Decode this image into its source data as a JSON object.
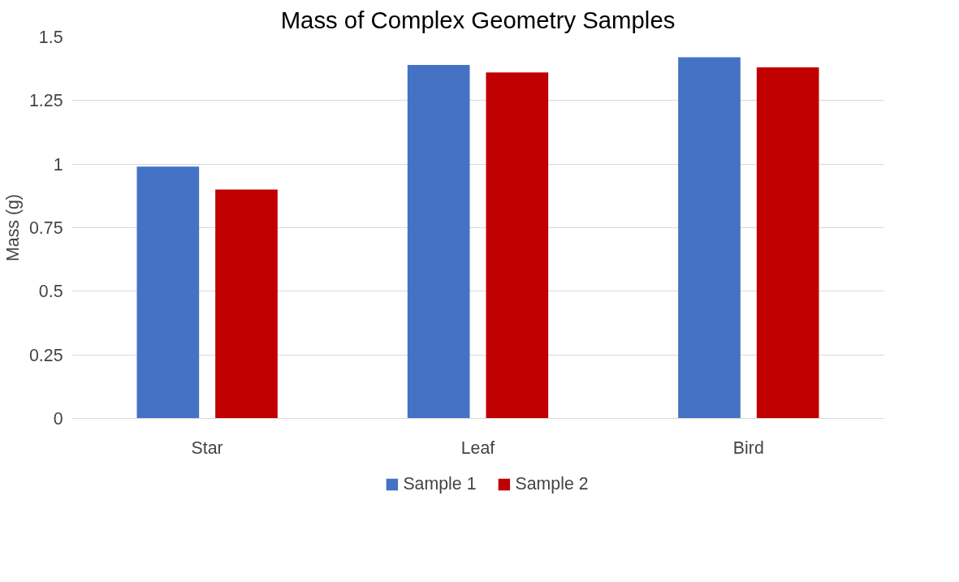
{
  "chart_data": {
    "type": "bar",
    "title": "Mass of Complex Geometry Samples",
    "ylabel": "Mass (g)",
    "categories": [
      "Star",
      "Leaf",
      "Bird"
    ],
    "series": [
      {
        "name": "Sample 1",
        "color": "#4472c4",
        "values": [
          0.99,
          1.39,
          1.42
        ]
      },
      {
        "name": "Sample 2",
        "color": "#c00000",
        "values": [
          0.9,
          1.36,
          1.38
        ]
      }
    ],
    "ylim": [
      0,
      1.5
    ],
    "yticks": [
      0,
      0.25,
      0.5,
      0.75,
      1,
      1.25,
      1.5
    ],
    "grid": "y",
    "legend": "bottom"
  }
}
